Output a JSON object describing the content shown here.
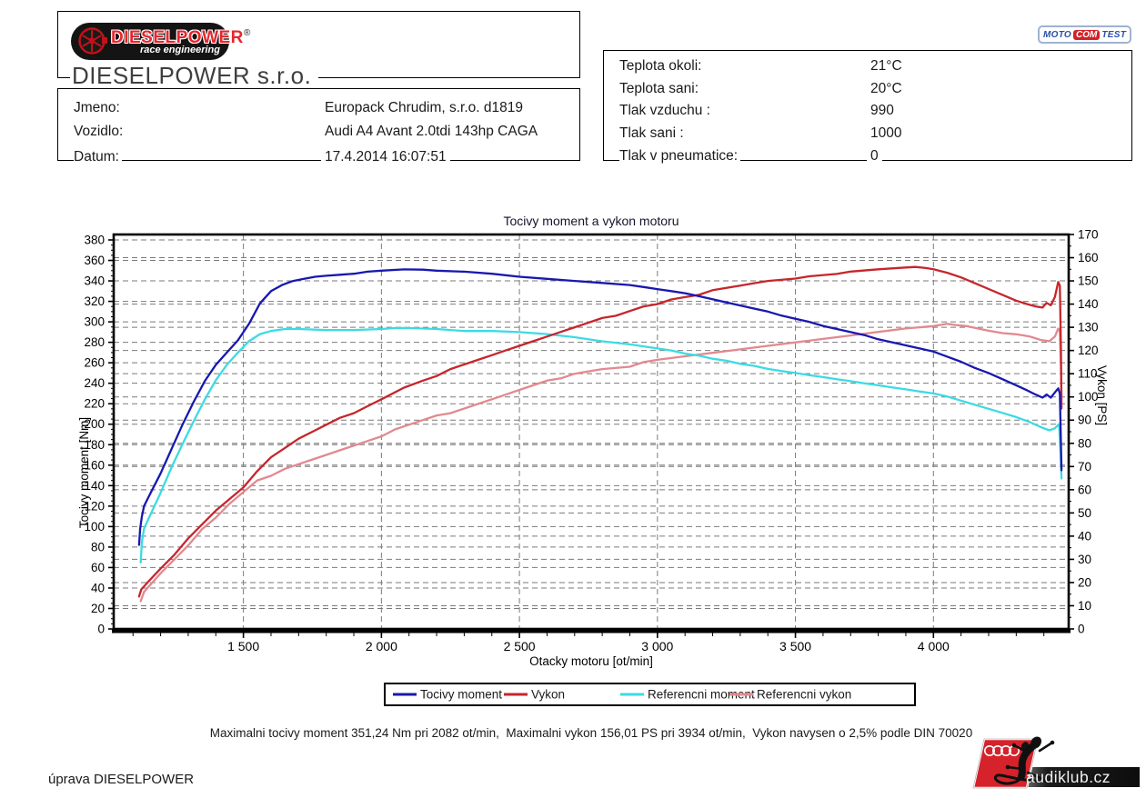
{
  "header": {
    "company_box": {
      "logo": {
        "brand": "DIESELPOWER",
        "subtitle": "race engineering",
        "registered": "®"
      },
      "company_name": "DIESELPOWER s.r.o."
    },
    "info_box": {
      "rows": [
        {
          "label": "Jmeno:",
          "value": "Europack Chrudim, s.r.o. d1819"
        },
        {
          "label": "Vozidlo:",
          "value": "Audi A4 Avant 2.0tdi 143hp CAGA"
        },
        {
          "label": "Datum:",
          "value": "17.4.2014 16:07:51"
        }
      ]
    },
    "conditions_box": {
      "rows": [
        {
          "label": "Teplota okoli:",
          "value": "21°C"
        },
        {
          "label": "Teplota sani:",
          "value": "20°C"
        },
        {
          "label": "Tlak vzduchu :",
          "value": "990"
        },
        {
          "label": "Tlak sani :",
          "value": "1000"
        },
        {
          "label": "Tlak v pneumatice:",
          "value": "0"
        }
      ]
    },
    "motocom_logo": {
      "part1": "MOTO",
      "part2": "COM",
      "part3": "TEST"
    }
  },
  "chart_data": {
    "type": "line",
    "title": "Tocivy moment a vykon motoru",
    "xlabel": "Otacky motoru [ot/min]",
    "ylabel_left": "Tocivy moment [Nm]",
    "ylabel_right": "Vykon [PS]",
    "x_range": [
      1030,
      4490
    ],
    "x_major_ticks": [
      1500,
      2000,
      2500,
      3000,
      3500,
      4000
    ],
    "x_tick_labels": [
      "1 500",
      "2 000",
      "2 500",
      "3 000",
      "3 500",
      "4 000"
    ],
    "x_minor_step": 100,
    "y_left": {
      "min": 0,
      "max": 380,
      "step": 20,
      "unit": "Nm"
    },
    "y_right": {
      "min": 0,
      "max": 170,
      "step": 10,
      "unit": "PS"
    },
    "grid": true,
    "grid_color": "#7a7a7a",
    "legend_position": "bottom",
    "series": [
      {
        "name": "Tocivy moment",
        "axis": "left",
        "color": "#1818b0",
        "points": [
          [
            1122,
            82
          ],
          [
            1126,
            98
          ],
          [
            1132,
            110
          ],
          [
            1140,
            120
          ],
          [
            1160,
            131
          ],
          [
            1200,
            152
          ],
          [
            1240,
            176
          ],
          [
            1280,
            200
          ],
          [
            1320,
            222
          ],
          [
            1360,
            242
          ],
          [
            1400,
            258
          ],
          [
            1440,
            270
          ],
          [
            1480,
            282
          ],
          [
            1520,
            298
          ],
          [
            1560,
            318
          ],
          [
            1600,
            330
          ],
          [
            1640,
            336
          ],
          [
            1680,
            340
          ],
          [
            1720,
            342
          ],
          [
            1760,
            344
          ],
          [
            1800,
            345
          ],
          [
            1850,
            346
          ],
          [
            1900,
            347
          ],
          [
            1950,
            349
          ],
          [
            2000,
            350
          ],
          [
            2082,
            351.24
          ],
          [
            2150,
            351
          ],
          [
            2200,
            350
          ],
          [
            2300,
            349
          ],
          [
            2400,
            347
          ],
          [
            2500,
            344
          ],
          [
            2600,
            342
          ],
          [
            2700,
            340
          ],
          [
            2800,
            338
          ],
          [
            2900,
            336
          ],
          [
            2950,
            334
          ],
          [
            3000,
            332
          ],
          [
            3050,
            330
          ],
          [
            3100,
            328
          ],
          [
            3150,
            325
          ],
          [
            3200,
            322
          ],
          [
            3250,
            319
          ],
          [
            3300,
            316
          ],
          [
            3350,
            313
          ],
          [
            3400,
            310
          ],
          [
            3450,
            306
          ],
          [
            3500,
            303
          ],
          [
            3550,
            300
          ],
          [
            3600,
            296
          ],
          [
            3650,
            293
          ],
          [
            3700,
            290
          ],
          [
            3750,
            287
          ],
          [
            3800,
            283
          ],
          [
            3850,
            280
          ],
          [
            3900,
            277
          ],
          [
            3950,
            274
          ],
          [
            4000,
            271
          ],
          [
            4050,
            266
          ],
          [
            4100,
            261
          ],
          [
            4150,
            255
          ],
          [
            4200,
            250
          ],
          [
            4250,
            244
          ],
          [
            4300,
            238
          ],
          [
            4340,
            233
          ],
          [
            4370,
            229
          ],
          [
            4395,
            226
          ],
          [
            4410,
            229
          ],
          [
            4425,
            226
          ],
          [
            4440,
            231
          ],
          [
            4452,
            235
          ],
          [
            4458,
            230
          ],
          [
            4462,
            180
          ],
          [
            4464,
            155
          ]
        ]
      },
      {
        "name": "Vykon",
        "axis": "right",
        "color": "#c5262c",
        "points": [
          [
            1122,
            14
          ],
          [
            1130,
            17
          ],
          [
            1160,
            21
          ],
          [
            1200,
            26
          ],
          [
            1250,
            32
          ],
          [
            1300,
            39
          ],
          [
            1350,
            45
          ],
          [
            1400,
            51
          ],
          [
            1450,
            56
          ],
          [
            1500,
            61
          ],
          [
            1550,
            68
          ],
          [
            1600,
            74
          ],
          [
            1650,
            78
          ],
          [
            1700,
            82
          ],
          [
            1750,
            85
          ],
          [
            1800,
            88
          ],
          [
            1850,
            91
          ],
          [
            1900,
            93
          ],
          [
            1950,
            96
          ],
          [
            2000,
            99
          ],
          [
            2082,
            104
          ],
          [
            2150,
            107
          ],
          [
            2200,
            109
          ],
          [
            2250,
            112
          ],
          [
            2300,
            114
          ],
          [
            2350,
            116
          ],
          [
            2400,
            118
          ],
          [
            2450,
            120
          ],
          [
            2500,
            122
          ],
          [
            2550,
            124
          ],
          [
            2600,
            126
          ],
          [
            2650,
            128
          ],
          [
            2700,
            130
          ],
          [
            2750,
            132
          ],
          [
            2800,
            134
          ],
          [
            2850,
            135
          ],
          [
            2900,
            137
          ],
          [
            2950,
            139
          ],
          [
            3000,
            140
          ],
          [
            3050,
            142
          ],
          [
            3100,
            143
          ],
          [
            3150,
            144
          ],
          [
            3200,
            146
          ],
          [
            3250,
            147
          ],
          [
            3300,
            148
          ],
          [
            3350,
            149
          ],
          [
            3400,
            150
          ],
          [
            3500,
            151
          ],
          [
            3550,
            152
          ],
          [
            3650,
            153
          ],
          [
            3700,
            154
          ],
          [
            3800,
            155
          ],
          [
            3900,
            155.8
          ],
          [
            3934,
            156.01
          ],
          [
            3970,
            155.6
          ],
          [
            4000,
            155
          ],
          [
            4050,
            153.5
          ],
          [
            4100,
            151.5
          ],
          [
            4150,
            149
          ],
          [
            4200,
            146.5
          ],
          [
            4250,
            144
          ],
          [
            4300,
            141.5
          ],
          [
            4340,
            140
          ],
          [
            4370,
            139
          ],
          [
            4395,
            138.5
          ],
          [
            4410,
            140.5
          ],
          [
            4425,
            139.5
          ],
          [
            4440,
            143
          ],
          [
            4452,
            149.5
          ],
          [
            4458,
            148
          ],
          [
            4462,
            120
          ],
          [
            4464,
            95
          ]
        ]
      },
      {
        "name": "Referencni moment",
        "axis": "left",
        "color": "#3cdbe3",
        "points": [
          [
            1128,
            65
          ],
          [
            1132,
            85
          ],
          [
            1140,
            98
          ],
          [
            1160,
            110
          ],
          [
            1200,
            133
          ],
          [
            1240,
            158
          ],
          [
            1280,
            181
          ],
          [
            1320,
            203
          ],
          [
            1360,
            224
          ],
          [
            1400,
            243
          ],
          [
            1440,
            258
          ],
          [
            1480,
            270
          ],
          [
            1520,
            281
          ],
          [
            1560,
            288
          ],
          [
            1600,
            291
          ],
          [
            1650,
            293
          ],
          [
            1700,
            293
          ],
          [
            1800,
            292
          ],
          [
            1900,
            292
          ],
          [
            2000,
            293
          ],
          [
            2050,
            294
          ],
          [
            2100,
            294
          ],
          [
            2200,
            293
          ],
          [
            2300,
            291
          ],
          [
            2400,
            291
          ],
          [
            2500,
            290
          ],
          [
            2550,
            289
          ],
          [
            2600,
            288
          ],
          [
            2700,
            285
          ],
          [
            2800,
            281
          ],
          [
            2900,
            278
          ],
          [
            2950,
            276
          ],
          [
            3000,
            274
          ],
          [
            3050,
            272
          ],
          [
            3100,
            269
          ],
          [
            3150,
            267
          ],
          [
            3200,
            264
          ],
          [
            3250,
            262
          ],
          [
            3300,
            259
          ],
          [
            3350,
            257
          ],
          [
            3400,
            254
          ],
          [
            3450,
            252
          ],
          [
            3500,
            250
          ],
          [
            3550,
            248
          ],
          [
            3600,
            246
          ],
          [
            3650,
            244
          ],
          [
            3700,
            242
          ],
          [
            3750,
            240
          ],
          [
            3800,
            238
          ],
          [
            3850,
            236
          ],
          [
            3900,
            234
          ],
          [
            3950,
            232
          ],
          [
            4000,
            230
          ],
          [
            4050,
            227
          ],
          [
            4100,
            223
          ],
          [
            4150,
            219
          ],
          [
            4200,
            215
          ],
          [
            4250,
            211
          ],
          [
            4300,
            207
          ],
          [
            4350,
            202
          ],
          [
            4390,
            197
          ],
          [
            4420,
            194
          ],
          [
            4440,
            196
          ],
          [
            4455,
            200
          ],
          [
            4460,
            175
          ],
          [
            4464,
            147
          ]
        ]
      },
      {
        "name": "Referencni vykon",
        "axis": "right",
        "color": "#e2898f",
        "points": [
          [
            1128,
            12
          ],
          [
            1140,
            16
          ],
          [
            1200,
            24
          ],
          [
            1250,
            30
          ],
          [
            1300,
            36
          ],
          [
            1350,
            43
          ],
          [
            1400,
            48
          ],
          [
            1450,
            54
          ],
          [
            1500,
            59
          ],
          [
            1550,
            64
          ],
          [
            1600,
            66
          ],
          [
            1650,
            69
          ],
          [
            1700,
            71
          ],
          [
            1750,
            73
          ],
          [
            1800,
            75
          ],
          [
            1850,
            77
          ],
          [
            1900,
            79
          ],
          [
            1950,
            81
          ],
          [
            2000,
            83
          ],
          [
            2050,
            86
          ],
          [
            2100,
            88
          ],
          [
            2150,
            90
          ],
          [
            2200,
            92
          ],
          [
            2250,
            93
          ],
          [
            2300,
            95
          ],
          [
            2350,
            97
          ],
          [
            2400,
            99
          ],
          [
            2450,
            101
          ],
          [
            2500,
            103
          ],
          [
            2550,
            105
          ],
          [
            2600,
            107
          ],
          [
            2650,
            108
          ],
          [
            2700,
            110
          ],
          [
            2750,
            111
          ],
          [
            2800,
            112
          ],
          [
            2900,
            113
          ],
          [
            2950,
            115
          ],
          [
            3000,
            116
          ],
          [
            3100,
            117.5
          ],
          [
            3200,
            119
          ],
          [
            3300,
            120.5
          ],
          [
            3400,
            122
          ],
          [
            3500,
            123.5
          ],
          [
            3600,
            125
          ],
          [
            3700,
            126.5
          ],
          [
            3800,
            128
          ],
          [
            3900,
            129.5
          ],
          [
            4000,
            130.5
          ],
          [
            4050,
            131.5
          ],
          [
            4080,
            131
          ],
          [
            4120,
            130.5
          ],
          [
            4160,
            129.5
          ],
          [
            4200,
            128.5
          ],
          [
            4250,
            127.5
          ],
          [
            4300,
            127
          ],
          [
            4350,
            126
          ],
          [
            4390,
            124.5
          ],
          [
            4420,
            124
          ],
          [
            4440,
            126
          ],
          [
            4452,
            129.5
          ],
          [
            4458,
            128
          ],
          [
            4462,
            112
          ],
          [
            4464,
            100
          ]
        ]
      }
    ]
  },
  "summary": "Maximalni tocivy moment 351,24 Nm pri 2082 ot/min,  Maximalni vykon 156,01 PS pri 3934 ot/min,  Vykon navysen o 2,5% podle DIN 70020",
  "footer": {
    "note": "úprava DIESELPOWER",
    "audiklub": "audiklub.cz"
  }
}
